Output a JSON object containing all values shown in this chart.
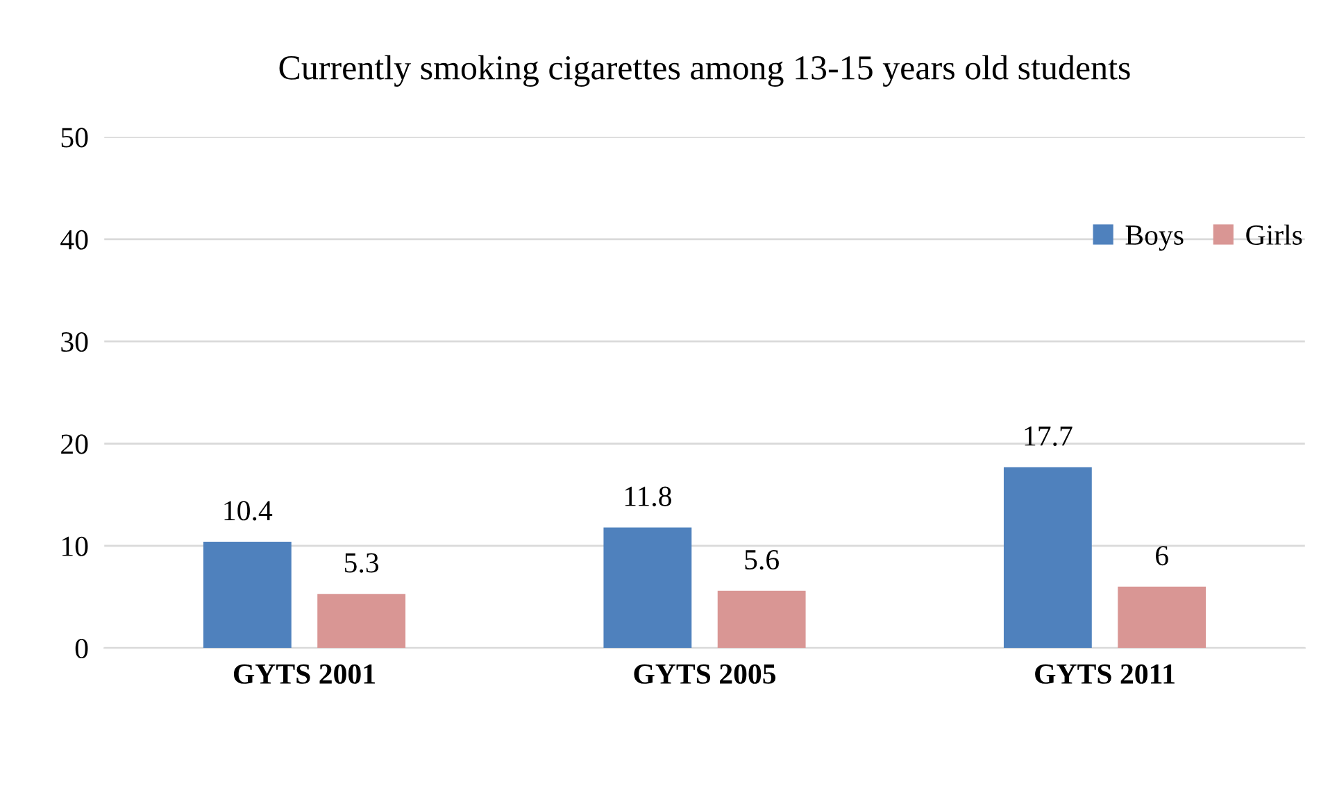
{
  "chart_data": {
    "type": "bar",
    "title": "Currently smoking cigarettes among 13-15 years old students",
    "categories": [
      "GYTS 2001",
      "GYTS 2005",
      "GYTS 2011"
    ],
    "series": [
      {
        "name": "Boys",
        "color": "#4f81bd",
        "values": [
          10.4,
          11.8,
          17.7
        ]
      },
      {
        "name": "Girls",
        "color": "#d99694",
        "values": [
          5.3,
          5.6,
          6
        ]
      }
    ],
    "ylim": [
      0,
      50
    ],
    "yticks": [
      0,
      10,
      20,
      30,
      40,
      50
    ],
    "grid": "y",
    "legend": "top right",
    "data_labels": true
  }
}
